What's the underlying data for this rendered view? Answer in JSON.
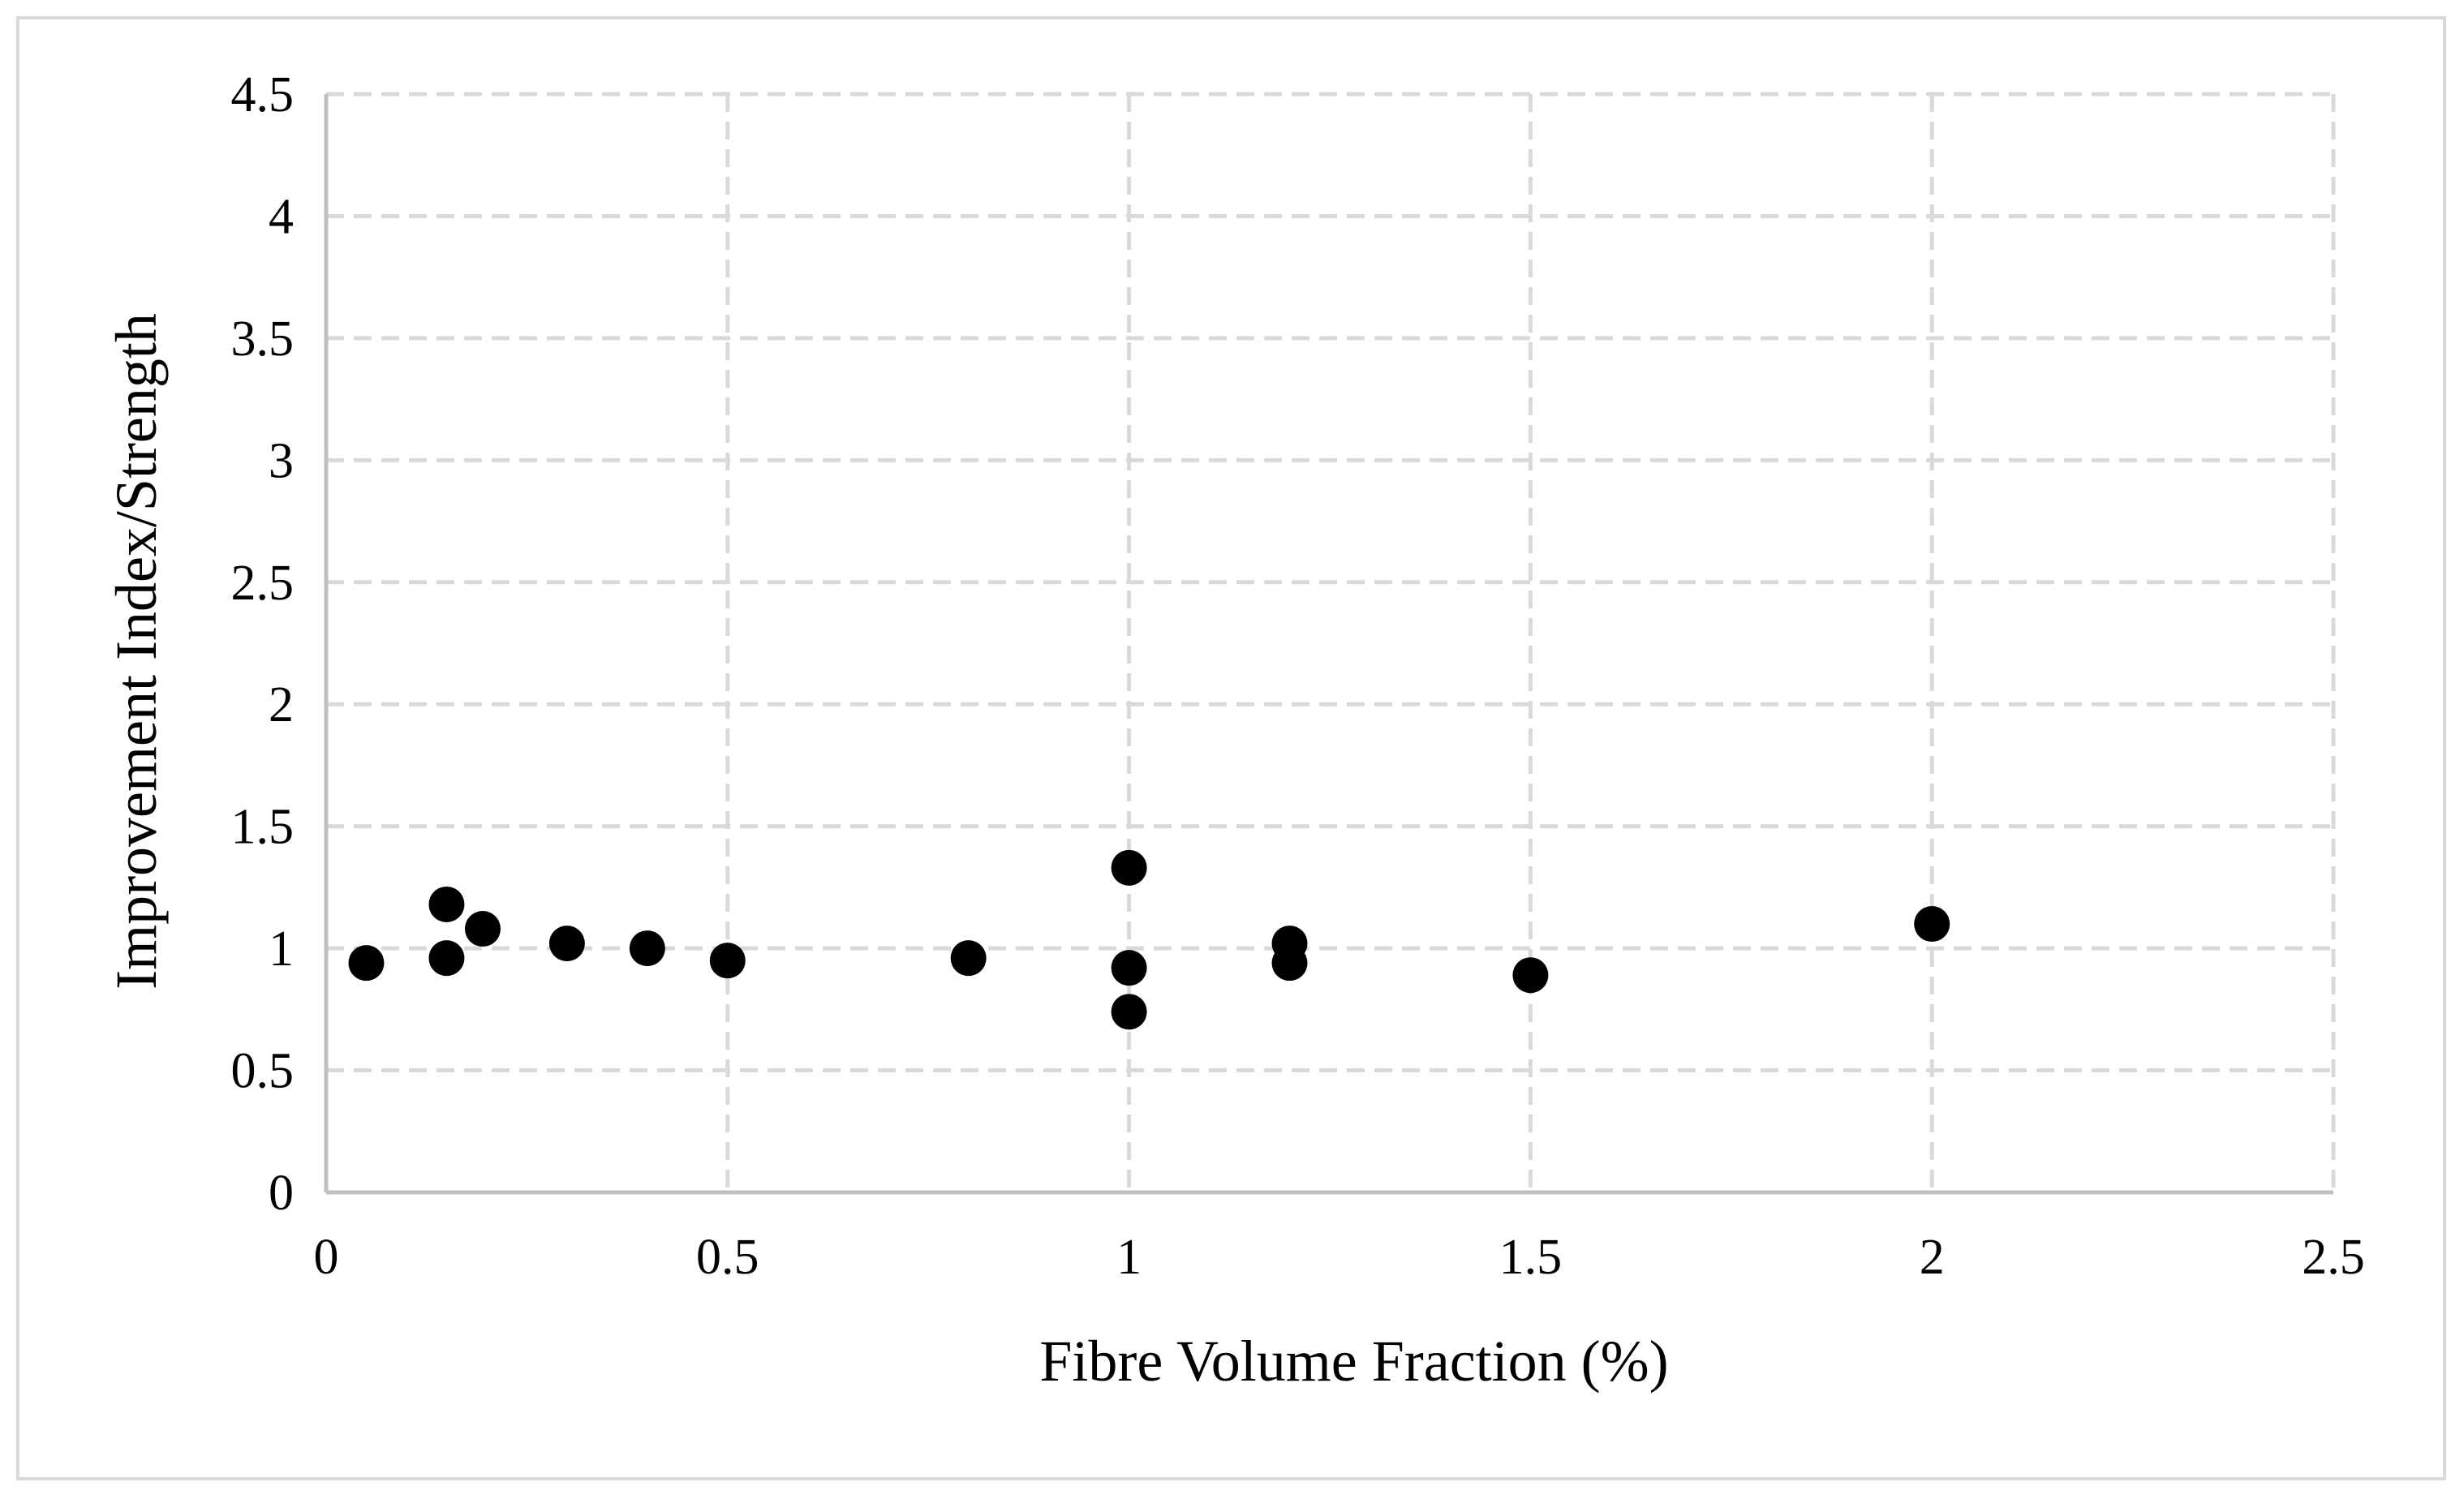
{
  "chart_data": {
    "type": "scatter",
    "title": "",
    "xlabel": "Fibre Volume Fraction (%)",
    "ylabel": "Improvement Index/Strength",
    "xlim": [
      0,
      2.5
    ],
    "ylim": [
      0,
      4.5
    ],
    "x_ticks": [
      "0",
      "0.5",
      "1",
      "1.5",
      "2",
      "2.5"
    ],
    "y_ticks": [
      "0",
      "0.5",
      "1",
      "1.5",
      "2",
      "2.5",
      "3",
      "3.5",
      "4",
      "4.5"
    ],
    "grid": "dashed",
    "marker_color": "#000000",
    "series": [
      {
        "points": [
          {
            "x": 0.05,
            "y": 0.94
          },
          {
            "x": 0.15,
            "y": 1.18
          },
          {
            "x": 0.15,
            "y": 0.96
          },
          {
            "x": 0.195,
            "y": 1.08
          },
          {
            "x": 0.3,
            "y": 1.02
          },
          {
            "x": 0.4,
            "y": 1.0
          },
          {
            "x": 0.5,
            "y": 0.95
          },
          {
            "x": 0.8,
            "y": 0.96
          },
          {
            "x": 1.0,
            "y": 1.33
          },
          {
            "x": 1.0,
            "y": 0.92
          },
          {
            "x": 1.0,
            "y": 0.74
          },
          {
            "x": 1.2,
            "y": 1.02
          },
          {
            "x": 1.2,
            "y": 0.94
          },
          {
            "x": 1.5,
            "y": 0.89
          },
          {
            "x": 2.0,
            "y": 1.1
          }
        ]
      }
    ]
  }
}
